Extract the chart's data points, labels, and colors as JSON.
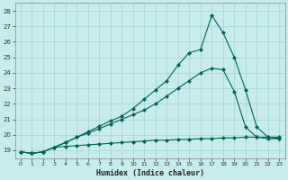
{
  "xlabel": "Humidex (Indice chaleur)",
  "xlim": [
    -0.5,
    23.5
  ],
  "ylim": [
    18.5,
    28.5
  ],
  "yticks": [
    19,
    20,
    21,
    22,
    23,
    24,
    25,
    26,
    27,
    28
  ],
  "xticks": [
    0,
    1,
    2,
    3,
    4,
    5,
    6,
    7,
    8,
    9,
    10,
    11,
    12,
    13,
    14,
    15,
    16,
    17,
    18,
    19,
    20,
    21,
    22,
    23
  ],
  "bg_color": "#c8ecea",
  "line_color": "#006655",
  "grid_color": "#a8d8d4",
  "line1_x": [
    0,
    1,
    2,
    3,
    4,
    5,
    6,
    7,
    8,
    9,
    10,
    11,
    12,
    13,
    14,
    15,
    16,
    17,
    18,
    19,
    20,
    21,
    22,
    23
  ],
  "line1_y": [
    18.9,
    18.8,
    18.9,
    19.2,
    19.25,
    19.3,
    19.35,
    19.4,
    19.45,
    19.5,
    19.55,
    19.6,
    19.65,
    19.65,
    19.7,
    19.7,
    19.75,
    19.75,
    19.8,
    19.8,
    19.85,
    19.85,
    19.85,
    19.85
  ],
  "line2_x": [
    0,
    1,
    2,
    3,
    4,
    5,
    6,
    7,
    8,
    9,
    10,
    11,
    12,
    13,
    14,
    15,
    16,
    17,
    18,
    19,
    20,
    21,
    22,
    23
  ],
  "line2_y": [
    18.9,
    18.8,
    18.9,
    19.2,
    19.5,
    19.85,
    20.1,
    20.4,
    20.7,
    21.0,
    21.3,
    21.6,
    22.0,
    22.5,
    23.0,
    23.5,
    24.0,
    24.3,
    24.2,
    22.8,
    20.5,
    19.85,
    19.75,
    19.75
  ],
  "line3_x": [
    0,
    1,
    2,
    3,
    4,
    5,
    6,
    7,
    8,
    9,
    10,
    11,
    12,
    13,
    14,
    15,
    16,
    17,
    18,
    19,
    20,
    21,
    22,
    23
  ],
  "line3_y": [
    18.9,
    18.8,
    18.9,
    19.2,
    19.5,
    19.85,
    20.2,
    20.55,
    20.9,
    21.2,
    21.7,
    22.3,
    22.9,
    23.5,
    24.5,
    25.3,
    25.5,
    27.7,
    26.6,
    25.0,
    22.9,
    20.5,
    19.85,
    19.75
  ]
}
